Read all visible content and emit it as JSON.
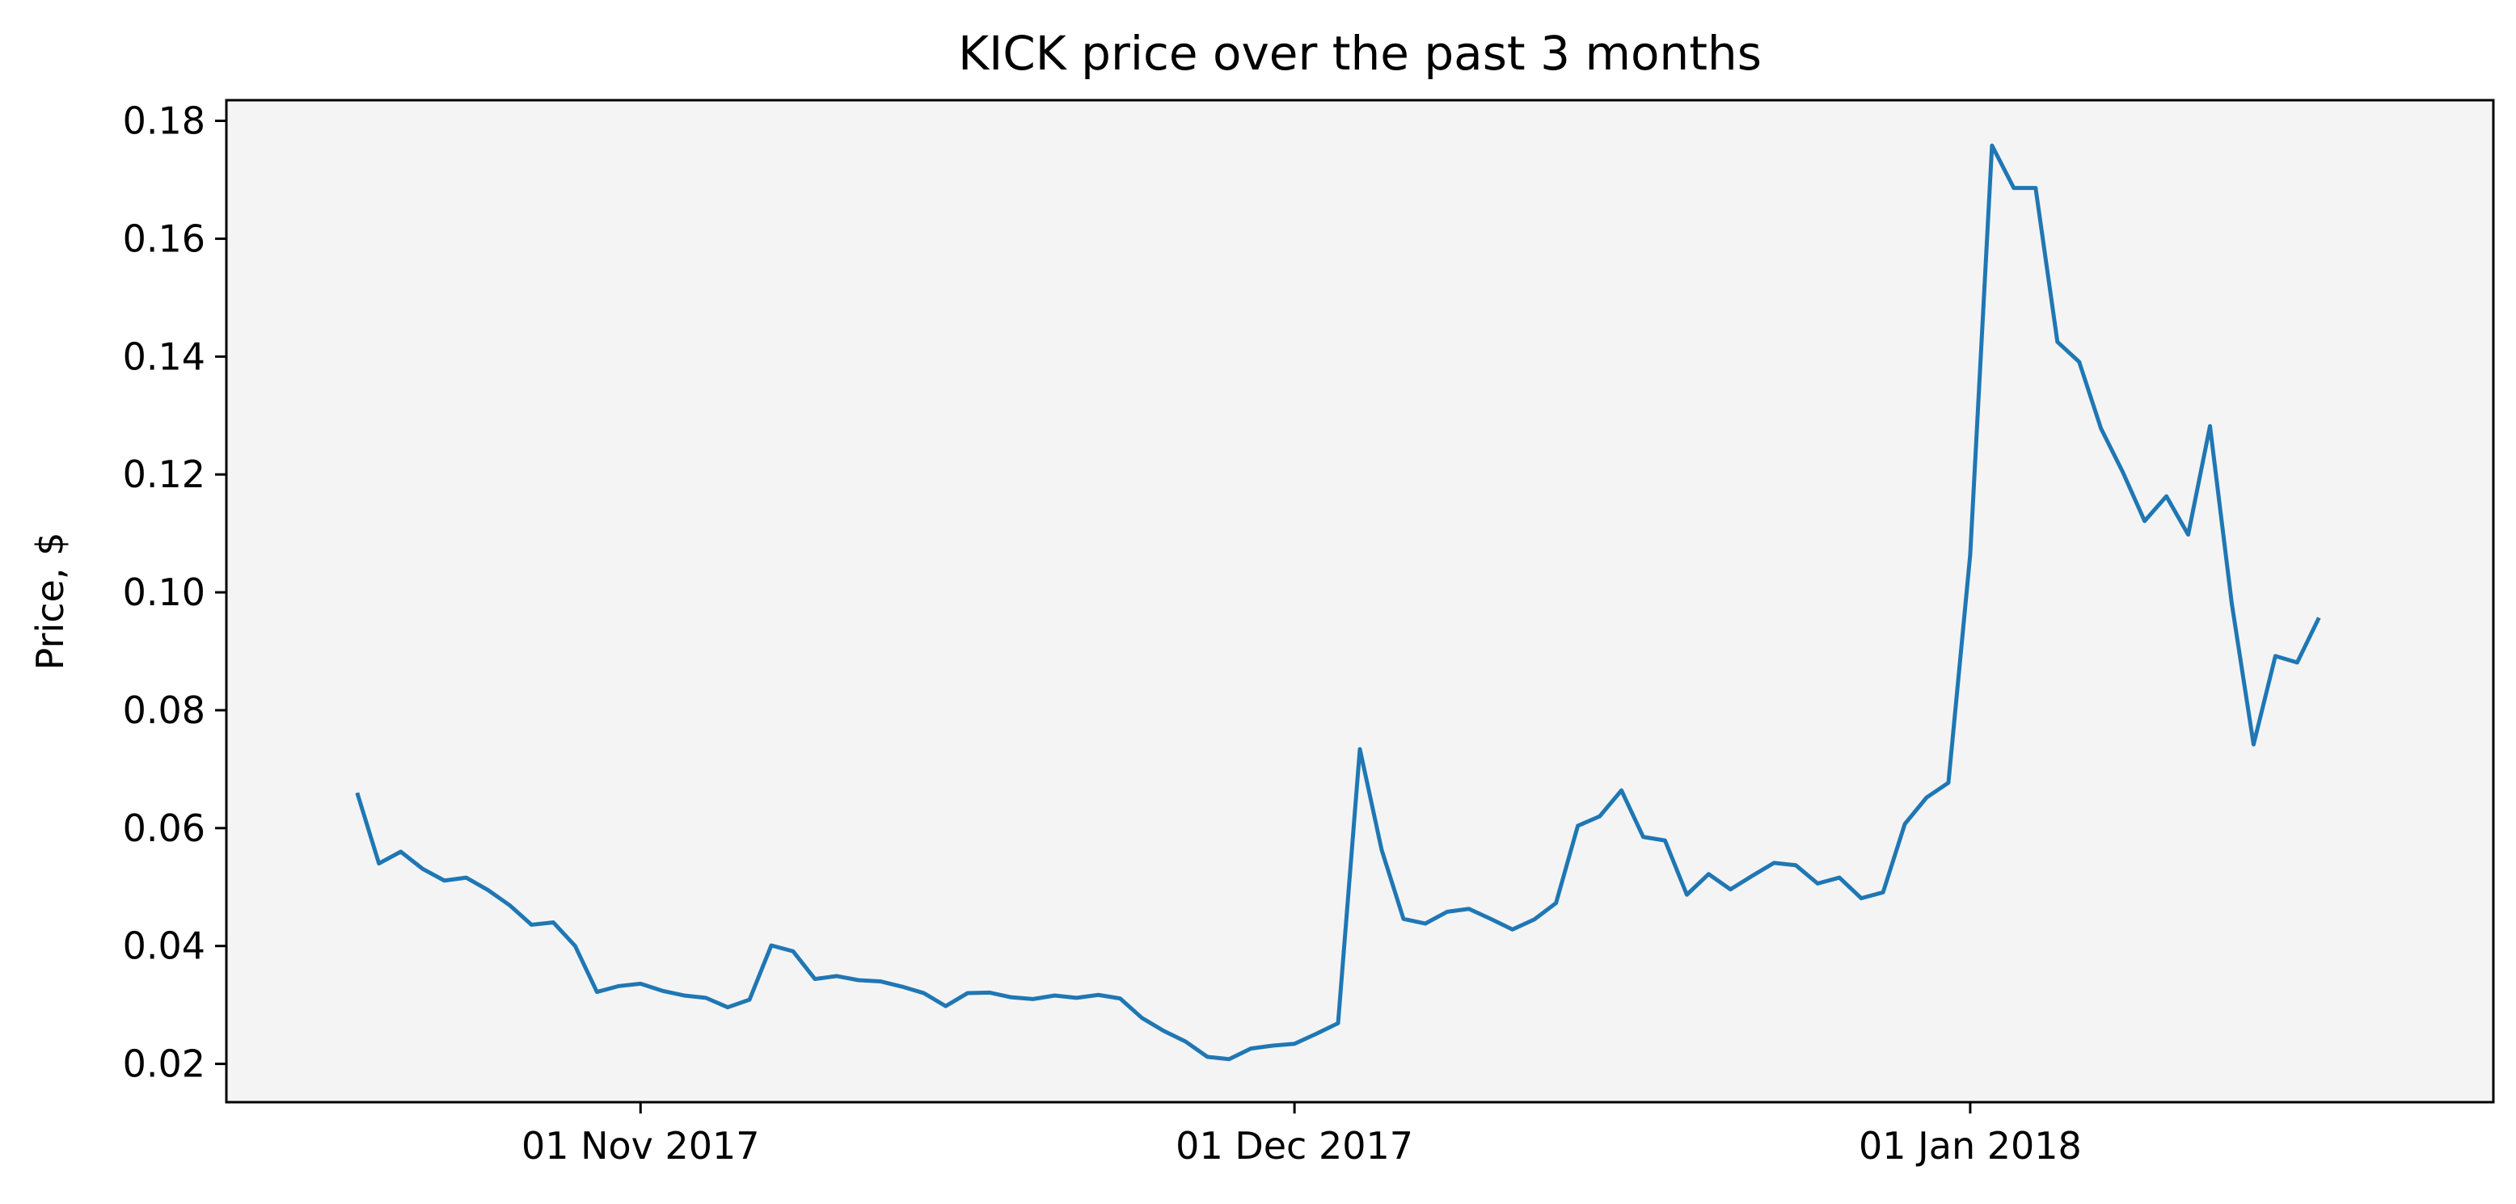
{
  "chart_data": {
    "type": "line",
    "title": "KICK price over the past 3 months",
    "xlabel": "",
    "ylabel": "Price, $",
    "x_start": "2017-10-19",
    "xlim": [
      "2017-10-13",
      "2018-01-25"
    ],
    "ylim": [
      0.0135,
      0.1835
    ],
    "x_ticks": [
      {
        "date": "2017-11-01",
        "label": "01 Nov 2017"
      },
      {
        "date": "2017-12-01",
        "label": "01 Dec 2017"
      },
      {
        "date": "2018-01-01",
        "label": "01 Jan 2018"
      }
    ],
    "y_ticks": [
      {
        "value": 0.02,
        "label": "0.02"
      },
      {
        "value": 0.04,
        "label": "0.04"
      },
      {
        "value": 0.06,
        "label": "0.06"
      },
      {
        "value": 0.08,
        "label": "0.08"
      },
      {
        "value": 0.1,
        "label": "0.10"
      },
      {
        "value": 0.12,
        "label": "0.12"
      },
      {
        "value": 0.14,
        "label": "0.14"
      },
      {
        "value": 0.16,
        "label": "0.16"
      },
      {
        "value": 0.18,
        "label": "0.18"
      }
    ],
    "grid": false,
    "background": "#f4f4f4",
    "series": [
      {
        "name": "",
        "color": "#1f77b4",
        "values": [
          0.066,
          0.054,
          0.056,
          0.0531,
          0.0511,
          0.0516,
          0.0495,
          0.0469,
          0.0436,
          0.044,
          0.04,
          0.0322,
          0.0332,
          0.0336,
          0.0324,
          0.0316,
          0.0312,
          0.0296,
          0.0309,
          0.0401,
          0.0391,
          0.0344,
          0.0349,
          0.0342,
          0.034,
          0.0331,
          0.032,
          0.0298,
          0.032,
          0.0321,
          0.0313,
          0.031,
          0.0316,
          0.0312,
          0.0317,
          0.0311,
          0.0278,
          0.0256,
          0.0238,
          0.0212,
          0.0208,
          0.0226,
          0.0231,
          0.0234,
          0.0251,
          0.0269,
          0.0734,
          0.0563,
          0.0446,
          0.0438,
          0.0458,
          0.0463,
          0.0446,
          0.0428,
          0.0445,
          0.0473,
          0.0604,
          0.062,
          0.0664,
          0.0585,
          0.0579,
          0.0487,
          0.0522,
          0.0496,
          0.0519,
          0.0541,
          0.0537,
          0.0506,
          0.0516,
          0.0481,
          0.0491,
          0.0607,
          0.0652,
          0.0677,
          0.1064,
          0.1758,
          0.1686,
          0.1686,
          0.1425,
          0.1391,
          0.1278,
          0.1204,
          0.1121,
          0.1163,
          0.1098,
          0.1282,
          0.0981,
          0.0742,
          0.0892,
          0.0881,
          0.0957
        ]
      }
    ]
  }
}
